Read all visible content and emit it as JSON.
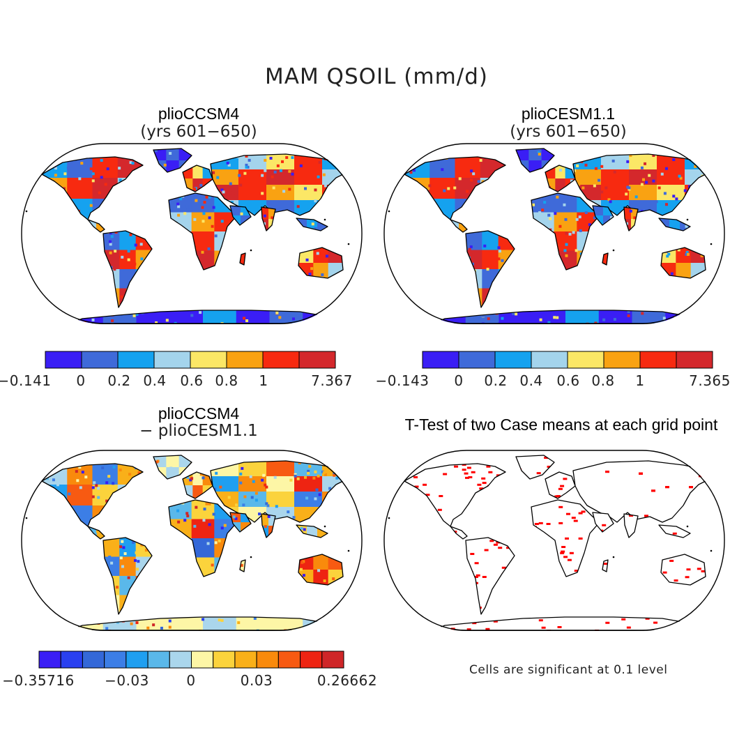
{
  "main_title": "MAM QSOIL (mm/d)",
  "panels": [
    {
      "title": "plioCCSM4",
      "subtitle": "(yrs 601−650)",
      "kind": "field",
      "colorbar": {
        "colors": [
          "#3a1ef5",
          "#3f6ad9",
          "#15a2ef",
          "#a4d4ec",
          "#fbe766",
          "#f9a212",
          "#f72a10",
          "#d4282c"
        ],
        "labels": [
          "−0.141",
          "0",
          "0.2",
          "0.4",
          "0.6",
          "0.8",
          "1",
          "7.367"
        ]
      }
    },
    {
      "title": "plioCESM1.1",
      "subtitle": "(yrs 601−650)",
      "kind": "field",
      "colorbar": {
        "colors": [
          "#3a1ef5",
          "#3f6ad9",
          "#15a2ef",
          "#a4d4ec",
          "#fbe766",
          "#f9a212",
          "#f72a10",
          "#d4282c"
        ],
        "labels": [
          "−0.143",
          "0",
          "0.2",
          "0.4",
          "0.6",
          "0.8",
          "1",
          "7.365"
        ]
      }
    },
    {
      "title": "plioCCSM4",
      "subtitle": "− plioCESM1.1",
      "kind": "difference",
      "colorbar": {
        "colors": [
          "#3a1ef5",
          "#2a40f0",
          "#3468d8",
          "#3c7ee6",
          "#1f9ff0",
          "#5ab8ea",
          "#aad6ec",
          "#fdf6a6",
          "#fbd33c",
          "#f9b019",
          "#f98a0c",
          "#f75a12",
          "#ee2412",
          "#cf2628"
        ],
        "labels": [
          "−0.35716",
          "−0.03",
          "0",
          "0.03",
          "0.26662"
        ]
      }
    },
    {
      "title": "T-Test of two Case means at each grid point",
      "subtitle": "",
      "kind": "significance",
      "note": "Cells are significant at 0.1 level"
    }
  ]
}
